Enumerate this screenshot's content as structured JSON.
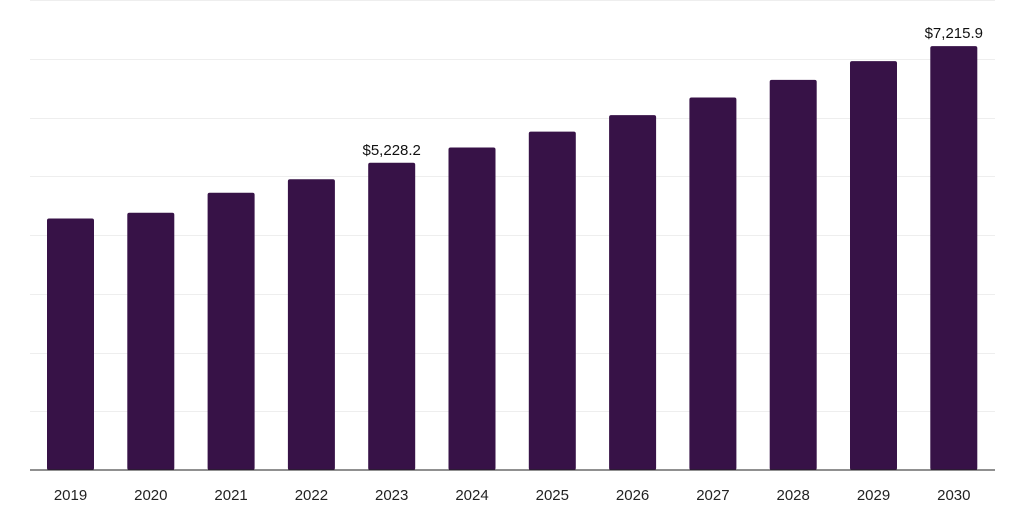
{
  "chart_data": {
    "type": "bar",
    "categories": [
      "2019",
      "2020",
      "2021",
      "2022",
      "2023",
      "2024",
      "2025",
      "2026",
      "2027",
      "2028",
      "2029",
      "2030"
    ],
    "values": [
      4280,
      4380,
      4720,
      4950,
      5228.2,
      5490,
      5760,
      6040,
      6340,
      6640,
      6960,
      7215.9
    ],
    "data_labels": [
      {
        "index": 4,
        "text": "$5,228.2"
      },
      {
        "index": 11,
        "text": "$7,215.9"
      }
    ],
    "title": "",
    "xlabel": "",
    "ylabel": "",
    "ylim": [
      0,
      8000
    ],
    "grid": true,
    "bar_color": "#371247"
  }
}
